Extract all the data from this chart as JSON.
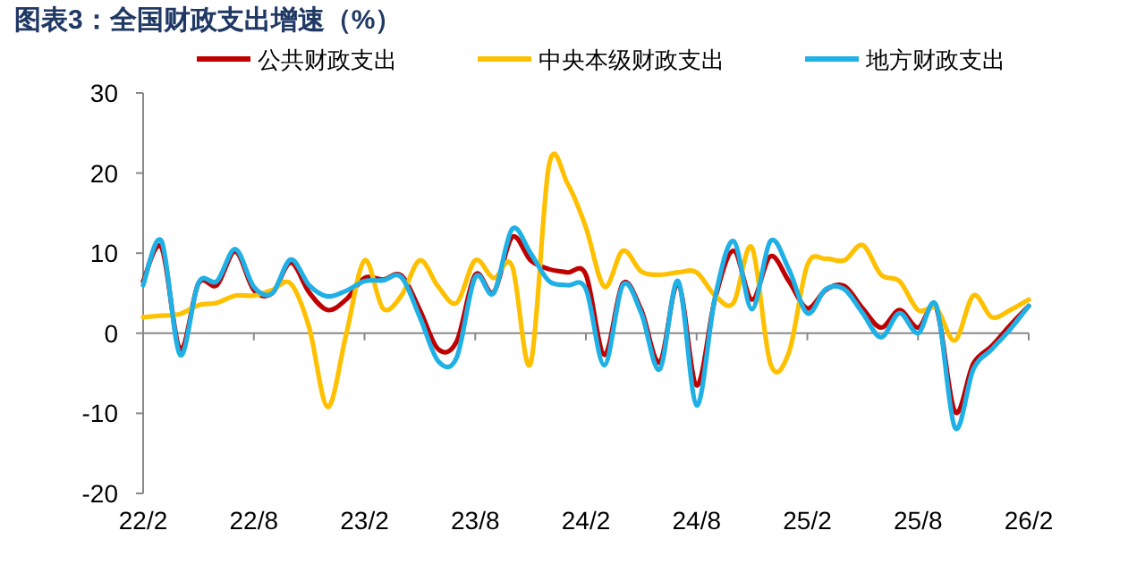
{
  "chart_data": {
    "type": "line",
    "title": "图表3：全国财政支出增速（%）",
    "categories": [
      "22/2",
      null,
      null,
      null,
      null,
      null,
      "22/8",
      null,
      null,
      null,
      null,
      null,
      "23/2",
      null,
      null,
      null,
      null,
      null,
      "23/8",
      null,
      null,
      null,
      null,
      null,
      "24/2",
      null,
      null,
      null,
      null,
      null,
      "24/8",
      null,
      null,
      null,
      null,
      null,
      "25/2",
      null,
      null,
      null,
      null,
      null,
      "25/8",
      null,
      null,
      null,
      null,
      null,
      "26/2"
    ],
    "series": [
      {
        "name": "公共财政支出",
        "color": "#c00000",
        "values": [
          6.5,
          10.7,
          -2.0,
          6.2,
          6.0,
          10.2,
          5.4,
          5.0,
          8.8,
          5.1,
          2.9,
          4.2,
          6.9,
          6.7,
          7.2,
          2.9,
          -2.0,
          -1.0,
          7.3,
          5.1,
          12.0,
          9.1,
          8.0,
          7.6,
          7.3,
          -2.7,
          6.2,
          2.9,
          -3.6,
          6.2,
          -6.5,
          4.3,
          10.3,
          4.2,
          9.6,
          6.5,
          3.1,
          5.4,
          5.9,
          3.1,
          0.7,
          2.9,
          0.7,
          3.1,
          -9.8,
          -3.8,
          -1.6,
          1.0,
          3.4
        ]
      },
      {
        "name": "中央本级财政支出",
        "color": "#ffc000",
        "values": [
          2.0,
          2.2,
          2.4,
          3.5,
          3.8,
          4.7,
          4.7,
          5.4,
          6.2,
          0.7,
          -9.2,
          -0.2,
          9.1,
          3.1,
          4.7,
          9.1,
          5.8,
          3.8,
          9.1,
          6.9,
          8.4,
          -3.8,
          21.0,
          18.7,
          13.2,
          5.8,
          10.3,
          7.7,
          7.3,
          7.6,
          7.6,
          4.7,
          3.8,
          10.7,
          -3.8,
          -2.4,
          8.5,
          9.3,
          9.1,
          11.0,
          7.3,
          6.5,
          2.9,
          3.1,
          -0.9,
          4.7,
          2.0,
          2.9,
          4.2
        ]
      },
      {
        "name": "地方财政支出",
        "color": "#1fb0e6",
        "values": [
          6.0,
          11.5,
          -2.7,
          6.3,
          6.5,
          10.5,
          5.8,
          5.0,
          9.2,
          6.0,
          4.6,
          5.3,
          6.5,
          6.6,
          7.0,
          2.0,
          -3.5,
          -3.0,
          7.0,
          5.0,
          13.0,
          10.0,
          6.5,
          6.0,
          5.5,
          -4.0,
          6.0,
          2.5,
          -4.5,
          6.5,
          -9.0,
          4.5,
          11.5,
          3.0,
          11.5,
          8.0,
          2.5,
          5.5,
          5.5,
          2.5,
          -0.5,
          2.5,
          0.0,
          3.4,
          -11.8,
          -4.5,
          -2.0,
          0.5,
          3.4
        ]
      }
    ],
    "ylim": [
      -20,
      30
    ],
    "yticks": [
      -20,
      -10,
      0,
      10,
      20,
      30
    ],
    "legend": "top"
  }
}
